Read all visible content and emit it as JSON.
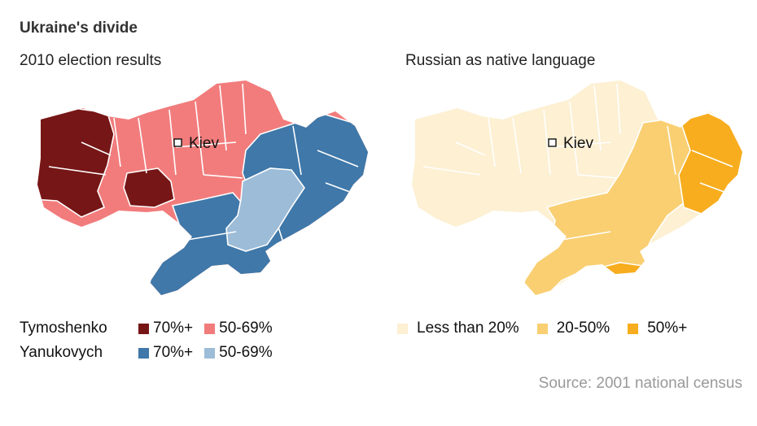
{
  "title": "Ukraine's divide",
  "left_map": {
    "subtitle": "2010 election results",
    "city": "Kiev",
    "colors": {
      "tymoshenko_70": "#761616",
      "tymoshenko_50": "#f27c7c",
      "yanukovych_70": "#3f78a9",
      "yanukovych_50": "#9cbcd8"
    },
    "legend": [
      {
        "candidate": "Tymoshenko",
        "items": [
          {
            "label": "70%+",
            "color": "#761616"
          },
          {
            "label": "50-69%",
            "color": "#f27c7c"
          }
        ]
      },
      {
        "candidate": "Yanukovych",
        "items": [
          {
            "label": "70%+",
            "color": "#3f78a9"
          },
          {
            "label": "50-69%",
            "color": "#9cbcd8"
          }
        ]
      }
    ]
  },
  "right_map": {
    "subtitle": "Russian as native language",
    "city": "Kiev",
    "colors": {
      "low": "#fdf0d3",
      "mid": "#f9cf72",
      "high": "#f7ad1d"
    },
    "legend": [
      {
        "label": "Less than 20%",
        "color": "#fdf0d3"
      },
      {
        "label": "20-50%",
        "color": "#f9cf72"
      },
      {
        "label": "50%+",
        "color": "#f7ad1d"
      }
    ]
  },
  "source": "Source: 2001 national census"
}
